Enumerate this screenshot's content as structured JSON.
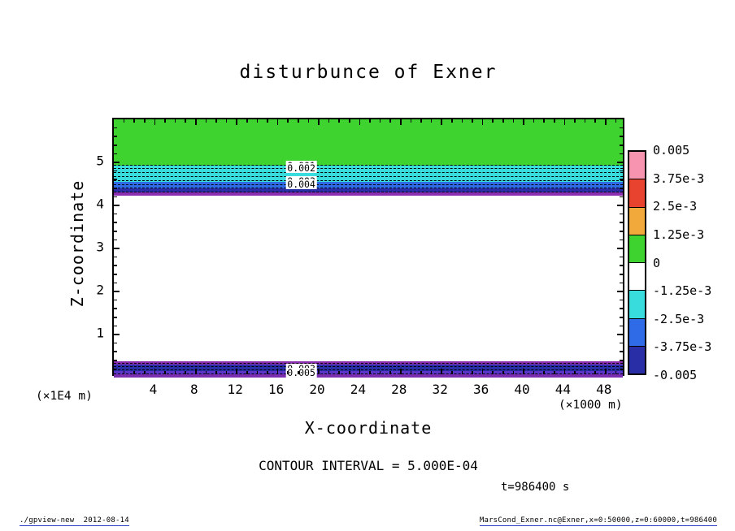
{
  "title": "disturbunce of Exner",
  "plot": {
    "x_label": "X-coordinate",
    "y_label": "Z-coordinate",
    "x_unit_label": "(×1000 m)",
    "y_unit_label": "(×1E4 m)"
  },
  "annotations": {
    "contour_interval": "CONTOUR INTERVAL = 5.000E-04",
    "time": "t=986400 s"
  },
  "colorbar": {
    "labels": [
      "0.005",
      "3.75e-3",
      "2.5e-3",
      "1.25e-3",
      "0",
      "-1.25e-3",
      "-2.5e-3",
      "-3.75e-3",
      "-0.005"
    ],
    "colors": [
      "#f794b0",
      "#e8432e",
      "#f2a93b",
      "#3ed32e",
      "#ffffff",
      "#38dcdc",
      "#2f6be6",
      "#2a2ea6"
    ]
  },
  "footer": {
    "left": "./gpview-new  2012-08-14",
    "right": "MarsCond_Exner.nc@Exner,x=0:50000,z=0:60000,t=986400"
  },
  "chart_data": {
    "type": "heatmap",
    "title": "disturbunce of Exner",
    "xlabel": "X-coordinate",
    "ylabel": "Z-coordinate",
    "x_unit": "×1000 m",
    "y_unit": "×1E4 m",
    "xlim": [
      0,
      50
    ],
    "ylim": [
      0,
      6
    ],
    "x_ticks": [
      4,
      8,
      12,
      16,
      20,
      24,
      28,
      32,
      36,
      40,
      44,
      48
    ],
    "y_ticks": [
      1,
      2,
      3,
      4,
      5
    ],
    "x_minor_step": 1,
    "y_minor_step": 0.2,
    "contour_interval": 0.0005,
    "time_seconds": 986400,
    "shade_levels": [
      0.005,
      0.00375,
      0.0025,
      0.00125,
      0,
      -0.00125,
      -0.0025,
      -0.00375,
      -0.005
    ],
    "bands": [
      {
        "z_from": 4.92,
        "z_to": 6.0,
        "value": "0 to 1.25e-3",
        "color": "#3ed32e"
      },
      {
        "z_from": 4.55,
        "z_to": 4.92,
        "value": "-1.25e-3 to -2.5e-3",
        "color": "#38dcdc"
      },
      {
        "z_from": 4.4,
        "z_to": 4.55,
        "value": "-2.5e-3 to -3.75e-3",
        "color": "#2f6be6"
      },
      {
        "z_from": 4.31,
        "z_to": 4.4,
        "value": "-3.75e-3 to -5e-3",
        "color": "#2a2ea6"
      },
      {
        "z_from": 4.22,
        "z_to": 4.31,
        "value": "< -5e-3",
        "color": "#8b2fb0"
      },
      {
        "z_from": 0.3,
        "z_to": 0.38,
        "value": "< -5e-3",
        "color": "#8b2fb0"
      },
      {
        "z_from": 0.16,
        "z_to": 0.3,
        "value": "-3.75e-3 to -5e-3",
        "color": "#2a2ea6"
      },
      {
        "z_from": 0.07,
        "z_to": 0.16,
        "value": "-2.5e-3 to -3.75e-3",
        "color": "#5b35c8"
      },
      {
        "z_from": 0.0,
        "z_to": 0.07,
        "value": "< -5e-3",
        "color": "#7a2fb0"
      }
    ],
    "contour_lines_z": [
      4.95,
      4.86,
      4.77,
      4.68,
      4.59,
      4.5,
      4.41,
      4.33,
      0.34,
      0.26,
      0.18,
      0.1
    ],
    "contour_labels": [
      {
        "text": "0.001",
        "x": 18.3,
        "z": 4.93
      },
      {
        "text": "0.002",
        "x": 18.3,
        "z": 4.86
      },
      {
        "text": "0.003",
        "x": 18.3,
        "z": 4.57
      },
      {
        "text": "0.004",
        "x": 18.3,
        "z": 4.5
      },
      {
        "text": "0.003",
        "x": 18.3,
        "z": 0.2
      },
      {
        "text": "0.005",
        "x": 18.3,
        "z": 0.12
      }
    ]
  }
}
